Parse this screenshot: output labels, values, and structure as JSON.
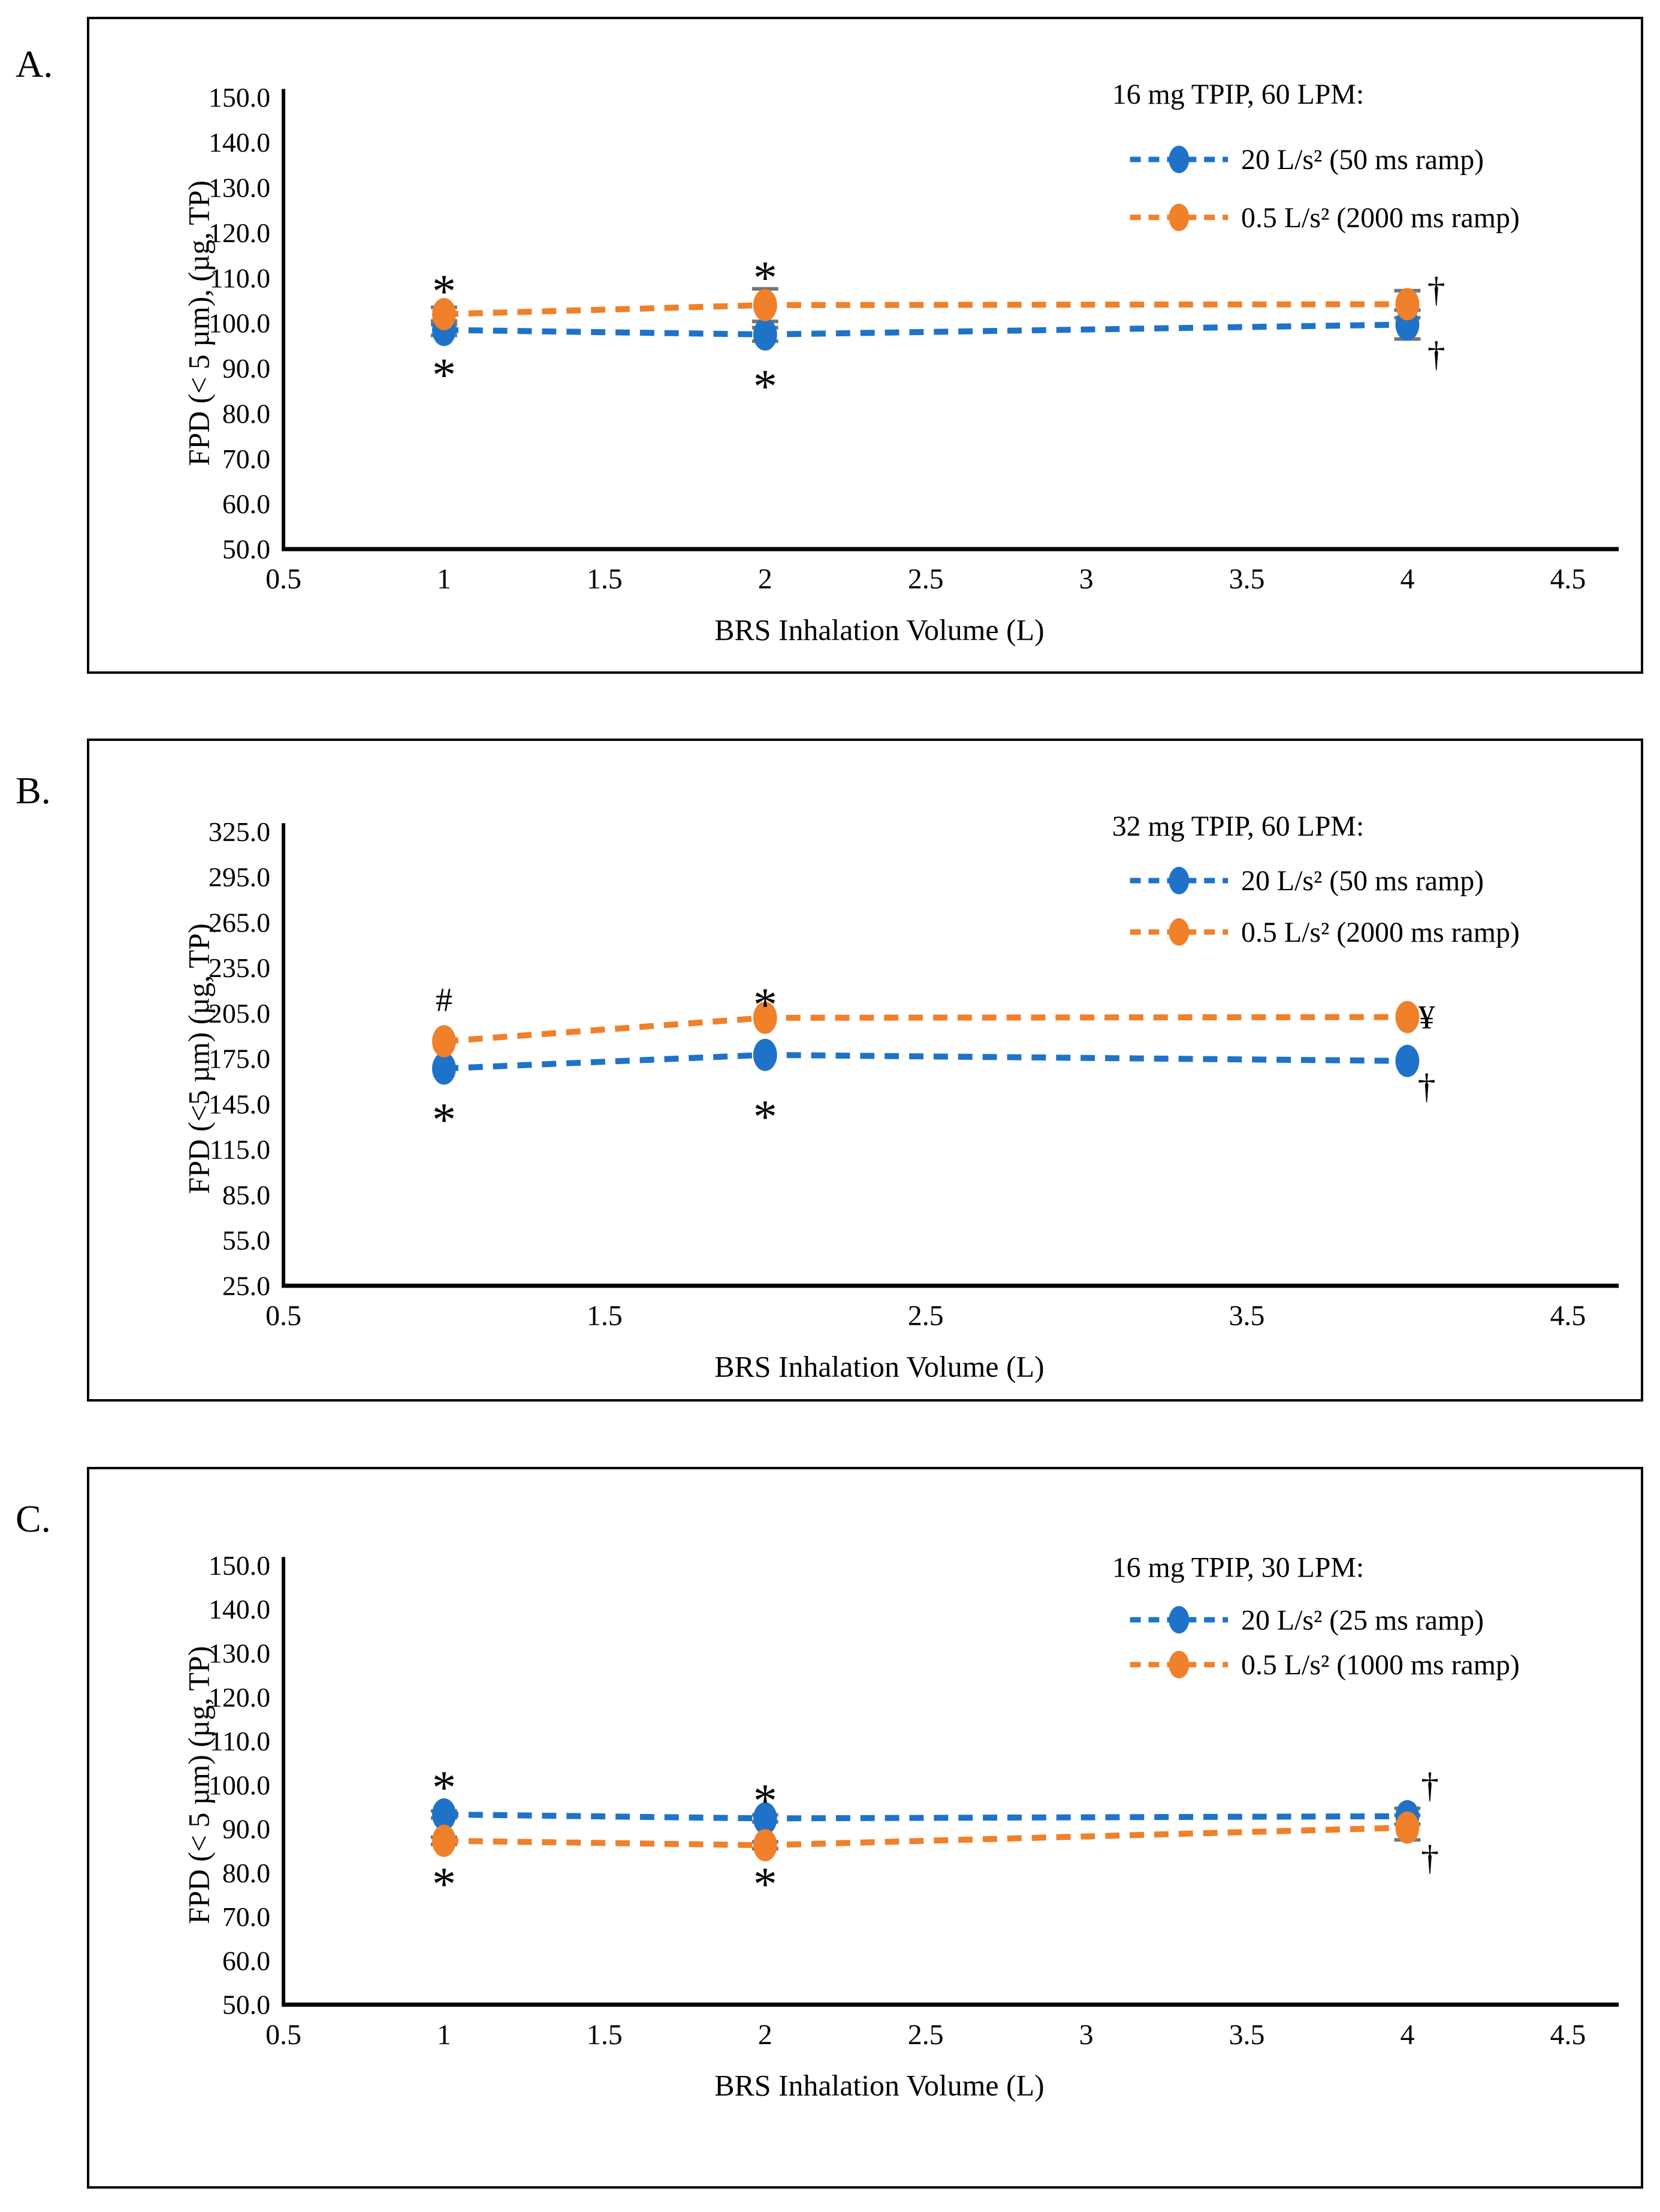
{
  "colors": {
    "series_blue": "#1E73C8",
    "series_orange": "#F0802A",
    "error_bar": "#757575",
    "axis": "#000000",
    "text": "#000000"
  },
  "icon_names": [
    "blue-series-marker-icon",
    "orange-series-marker-icon",
    "asterisk-annotation",
    "dagger-annotation",
    "yen-annotation",
    "hash-annotation"
  ],
  "chart_data": [
    {
      "type": "line",
      "panel_label": "A.",
      "legend_title": "16 mg TPIP, 60 LPM:",
      "xlabel": "BRS Inhalation Volume (L)",
      "ylabel": "FPD (< 5 µm), (µg, TP)",
      "xlim": [
        0.5,
        4.5
      ],
      "ylim": [
        50,
        150
      ],
      "grid": false,
      "legend_position": "top-right-inside",
      "xtick_values": [
        0.5,
        1,
        1.5,
        2,
        2.5,
        3,
        3.5,
        4,
        4.5
      ],
      "xtick_labels": [
        "0.5",
        "1",
        "1.5",
        "2",
        "2.5",
        "3",
        "3.5",
        "4",
        "4.5"
      ],
      "ytick_values": [
        150,
        140,
        130,
        120,
        110,
        100,
        90,
        80,
        70,
        60,
        50
      ],
      "ytick_labels": [
        "150.0",
        "140.0",
        "130.0",
        "120.0",
        "110.0",
        "100.0",
        "90.0",
        "80.0",
        "70.0",
        "60.0",
        "50.0"
      ],
      "x": [
        1,
        2,
        4
      ],
      "series": [
        {
          "name": "20 L/s² (50 ms ramp)",
          "color_key": "series_blue",
          "y": [
            98.5,
            97.5,
            99.7
          ],
          "err": [
            1.2,
            1.5,
            3.2
          ]
        },
        {
          "name": "0.5 L/s² (2000 ms ramp)",
          "color_key": "series_orange",
          "y": [
            102.0,
            104.0,
            104.2
          ],
          "err": [
            1.5,
            3.6,
            3.0
          ]
        }
      ],
      "annotations": [
        {
          "text": "*",
          "x": 1,
          "y": 110.5
        },
        {
          "text": "*",
          "x": 2,
          "y": 113.5
        },
        {
          "text": "*",
          "x": 1,
          "y": 92.0
        },
        {
          "text": "*",
          "x": 2,
          "y": 89.5
        },
        {
          "text": "†",
          "x": 4.09,
          "y": 107.5
        },
        {
          "text": "†",
          "x": 4.09,
          "y": 93.2
        }
      ]
    },
    {
      "type": "line",
      "panel_label": "B.",
      "legend_title": "32 mg TPIP, 60 LPM:",
      "xlabel": "BRS Inhalation Volume (L)",
      "ylabel": "FPD (<5 µm) (µg, TP)",
      "xlim": [
        0.5,
        4.5
      ],
      "ylim": [
        25,
        325
      ],
      "grid": false,
      "legend_position": "top-right-inside",
      "xtick_values": [
        0.5,
        1.5,
        2.5,
        3.5,
        4.5
      ],
      "xtick_labels": [
        "0.5",
        "1.5",
        "2.5",
        "3.5",
        "4.5"
      ],
      "ytick_values": [
        325,
        295,
        265,
        235,
        205,
        175,
        145,
        115,
        85,
        55,
        25
      ],
      "ytick_labels": [
        "325.0",
        "295.0",
        "265.0",
        "235.0",
        "205.0",
        "175.0",
        "145.0",
        "115.0",
        "85.0",
        "55.0",
        "25.0"
      ],
      "x": [
        1,
        2,
        4
      ],
      "series": [
        {
          "name": "20 L/s² (50 ms ramp)",
          "color_key": "series_blue",
          "y": [
            168.5,
            177.5,
            173.5
          ],
          "err": [
            0,
            0,
            0
          ]
        },
        {
          "name": "0.5 L/s² (2000 ms ramp)",
          "color_key": "series_orange",
          "y": [
            186.5,
            202.0,
            202.5
          ],
          "err": [
            0,
            0,
            0
          ]
        }
      ],
      "annotations": [
        {
          "text": "#",
          "x": 1,
          "y": 214
        },
        {
          "text": "*",
          "x": 2,
          "y": 221
        },
        {
          "text": "*",
          "x": 1,
          "y": 145
        },
        {
          "text": "*",
          "x": 2,
          "y": 147
        },
        {
          "text": "¥",
          "x": 4.06,
          "y": 202.5
        },
        {
          "text": "†",
          "x": 4.06,
          "y": 157
        }
      ]
    },
    {
      "type": "line",
      "panel_label": "C.",
      "legend_title": "16 mg TPIP, 30 LPM:",
      "xlabel": "BRS Inhalation Volume (L)",
      "ylabel": "FPD (< 5 µm)  (µg, TP)",
      "xlim": [
        0.5,
        4.5
      ],
      "ylim": [
        50,
        150
      ],
      "grid": false,
      "legend_position": "top-right-inside",
      "xtick_values": [
        0.5,
        1,
        1.5,
        2,
        2.5,
        3,
        3.5,
        4,
        4.5
      ],
      "xtick_labels": [
        "0.5",
        "1",
        "1.5",
        "2",
        "2.5",
        "3",
        "3.5",
        "4",
        "4.5"
      ],
      "ytick_values": [
        150,
        140,
        130,
        120,
        110,
        100,
        90,
        80,
        70,
        60,
        50
      ],
      "ytick_labels": [
        "150.0",
        "140.0",
        "130.0",
        "120.0",
        "110.0",
        "100.0",
        "90.0",
        "80.0",
        "70.0",
        "60.0",
        "50.0"
      ],
      "x": [
        1,
        2,
        4
      ],
      "series": [
        {
          "name": "20 L/s² (25 ms ramp)",
          "color_key": "series_blue",
          "y": [
            93.3,
            92.4,
            92.9
          ],
          "err": [
            0.8,
            0.8,
            1.8
          ]
        },
        {
          "name": "0.5 L/s² (1000 ms ramp)",
          "color_key": "series_orange",
          "y": [
            87.3,
            86.3,
            90.3
          ],
          "err": [
            0.8,
            0.8,
            2.8
          ]
        }
      ],
      "annotations": [
        {
          "text": "*",
          "x": 1,
          "y": 103
        },
        {
          "text": "*",
          "x": 2,
          "y": 100
        },
        {
          "text": "*",
          "x": 1,
          "y": 81
        },
        {
          "text": "*",
          "x": 2,
          "y": 81
        },
        {
          "text": "†",
          "x": 4.07,
          "y": 100
        },
        {
          "text": "†",
          "x": 4.07,
          "y": 83.5
        }
      ]
    }
  ]
}
